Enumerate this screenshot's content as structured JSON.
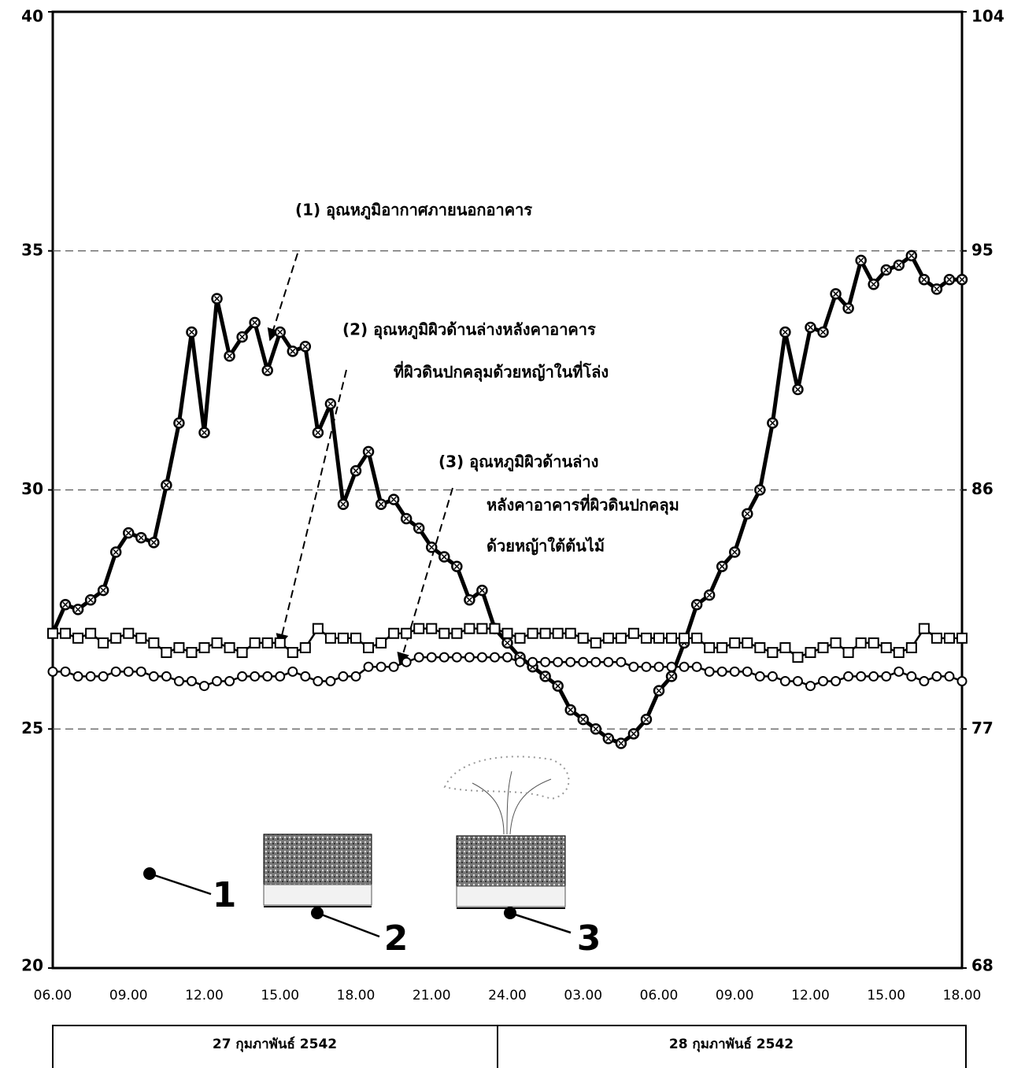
{
  "chart_data": {
    "type": "line",
    "categories": [
      "06.00",
      null,
      null,
      null,
      null,
      null,
      "09.00",
      null,
      null,
      null,
      null,
      null,
      "12.00",
      null,
      null,
      null,
      null,
      null,
      "15.00",
      null,
      null,
      null,
      null,
      null,
      "18.00",
      null,
      null,
      null,
      null,
      null,
      "21.00",
      null,
      null,
      null,
      null,
      null,
      "24.00",
      null,
      null,
      null,
      null,
      null,
      "03.00",
      null,
      null,
      null,
      null,
      null,
      "06.00",
      null,
      null,
      null,
      null,
      null,
      "09.00",
      null,
      null,
      null,
      null,
      null,
      "12.00",
      null,
      null,
      null,
      null,
      null,
      "15.00",
      null,
      null,
      null,
      null,
      null,
      "18.00"
    ],
    "series": [
      {
        "marker": "crossed-circle",
        "color": "#000000",
        "values": [
          27.0,
          27.6,
          27.5,
          27.7,
          27.9,
          28.7,
          29.1,
          29.0,
          28.9,
          30.1,
          31.4,
          33.3,
          31.2,
          34.0,
          32.8,
          33.2,
          33.5,
          32.5,
          33.3,
          32.9,
          33.0,
          31.2,
          31.8,
          29.7,
          30.4,
          30.8,
          29.7,
          29.8,
          29.4,
          29.2,
          28.8,
          28.6,
          28.4,
          27.7,
          27.9,
          27.1,
          26.8,
          26.5,
          26.3,
          26.1,
          25.9,
          25.4,
          25.2,
          25.0,
          24.8,
          24.7,
          24.9,
          25.2,
          25.8,
          26.1,
          26.8,
          27.6,
          27.8,
          28.4,
          28.7,
          29.5,
          30.0,
          31.4,
          33.3,
          32.1,
          33.4,
          33.3,
          34.1,
          33.8,
          34.8,
          34.3,
          34.6,
          34.7,
          34.9,
          34.4,
          34.2,
          34.4,
          34.4
        ]
      },
      {
        "marker": "square",
        "color": "#000000",
        "values": [
          27.0,
          27.0,
          26.9,
          27.0,
          26.8,
          26.9,
          27.0,
          26.9,
          26.8,
          26.6,
          26.7,
          26.6,
          26.7,
          26.8,
          26.7,
          26.6,
          26.8,
          26.8,
          26.8,
          26.6,
          26.7,
          27.1,
          26.9,
          26.9,
          26.9,
          26.7,
          26.8,
          27.0,
          27.0,
          27.1,
          27.1,
          27.0,
          27.0,
          27.1,
          27.1,
          27.1,
          27.0,
          26.9,
          27.0,
          27.0,
          27.0,
          27.0,
          26.9,
          26.8,
          26.9,
          26.9,
          27.0,
          26.9,
          26.9,
          26.9,
          26.9,
          26.9,
          26.7,
          26.7,
          26.8,
          26.8,
          26.7,
          26.6,
          26.7,
          26.5,
          26.6,
          26.7,
          26.8,
          26.6,
          26.8,
          26.8,
          26.7,
          26.6,
          26.7,
          27.1,
          26.9,
          26.9,
          26.9
        ]
      },
      {
        "marker": "circle",
        "color": "#000000",
        "values": [
          26.2,
          26.2,
          26.1,
          26.1,
          26.1,
          26.2,
          26.2,
          26.2,
          26.1,
          26.1,
          26.0,
          26.0,
          25.9,
          26.0,
          26.0,
          26.1,
          26.1,
          26.1,
          26.1,
          26.2,
          26.1,
          26.0,
          26.0,
          26.1,
          26.1,
          26.3,
          26.3,
          26.3,
          26.4,
          26.5,
          26.5,
          26.5,
          26.5,
          26.5,
          26.5,
          26.5,
          26.5,
          26.4,
          26.4,
          26.4,
          26.4,
          26.4,
          26.4,
          26.4,
          26.4,
          26.4,
          26.3,
          26.3,
          26.3,
          26.3,
          26.3,
          26.3,
          26.2,
          26.2,
          26.2,
          26.2,
          26.1,
          26.1,
          26.0,
          26.0,
          25.9,
          26.0,
          26.0,
          26.1,
          26.1,
          26.1,
          26.1,
          26.2,
          26.1,
          26.0,
          26.1,
          26.1,
          26.0
        ]
      }
    ],
    "ylim": [
      20,
      40
    ],
    "yticks": [
      20,
      25,
      30,
      35,
      40
    ],
    "y2lim": [
      68,
      104
    ],
    "y2ticks": [
      68,
      77,
      86,
      95,
      104
    ],
    "grid": true,
    "annotations": [
      {
        "lines": [
          "(1) อุณหภูมิอากาศภายนอกอาคาร"
        ]
      },
      {
        "lines": [
          "(2) อุณหภูมิผิวด้านล่างหลังคาอาคาร",
          "ที่ผิวดินปกคลุมด้วยหญ้าในที่โล่ง"
        ]
      },
      {
        "lines": [
          "(3) อุณหภูมิผิวด้านล่าง",
          "หลังคาอาคารที่ผิวดินปกคลุม",
          "ด้วยหญ้าใต้ต้นไม้"
        ]
      }
    ],
    "diagram_labels": [
      "1",
      "2",
      "3"
    ],
    "date_labels": [
      "27 กุมภาพันธ์ 2542",
      "28 กุมภาพันธ์ 2542"
    ]
  }
}
